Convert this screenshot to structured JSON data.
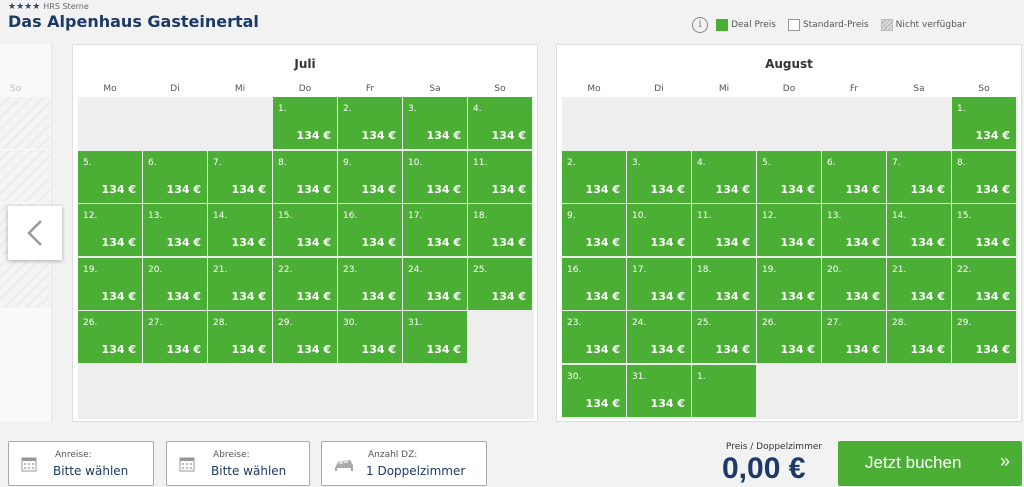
{
  "hotel": {
    "stars": "★★★★",
    "stars_label": "HRS Sterne",
    "name": "Das Alpenhaus Gasteinertal"
  },
  "legend": {
    "info_icon": "info-icon",
    "deal": "Deal Preis",
    "standard": "Standard-Preis",
    "unavailable": "Nicht verfügbar"
  },
  "colors": {
    "deal": "#4caf35",
    "brand": "#1c3a66"
  },
  "prev_month": {
    "weekday_hint": "So"
  },
  "weekdays": [
    "Mo",
    "Di",
    "Mi",
    "Do",
    "Fr",
    "Sa",
    "So"
  ],
  "months": [
    {
      "title": "Juli",
      "first_weekday_index": 3,
      "days": [
        {
          "d": "1.",
          "p": "134 €"
        },
        {
          "d": "2.",
          "p": "134 €"
        },
        {
          "d": "3.",
          "p": "134 €"
        },
        {
          "d": "4.",
          "p": "134 €"
        },
        {
          "d": "5.",
          "p": "134 €"
        },
        {
          "d": "6.",
          "p": "134 €"
        },
        {
          "d": "7.",
          "p": "134 €"
        },
        {
          "d": "8.",
          "p": "134 €"
        },
        {
          "d": "9.",
          "p": "134 €"
        },
        {
          "d": "10.",
          "p": "134 €"
        },
        {
          "d": "11.",
          "p": "134 €"
        },
        {
          "d": "12.",
          "p": "134 €"
        },
        {
          "d": "13.",
          "p": "134 €"
        },
        {
          "d": "14.",
          "p": "134 €"
        },
        {
          "d": "15.",
          "p": "134 €"
        },
        {
          "d": "16.",
          "p": "134 €"
        },
        {
          "d": "17.",
          "p": "134 €"
        },
        {
          "d": "18.",
          "p": "134 €"
        },
        {
          "d": "19.",
          "p": "134 €"
        },
        {
          "d": "20.",
          "p": "134 €"
        },
        {
          "d": "21.",
          "p": "134 €"
        },
        {
          "d": "22.",
          "p": "134 €"
        },
        {
          "d": "23.",
          "p": "134 €"
        },
        {
          "d": "24.",
          "p": "134 €"
        },
        {
          "d": "25.",
          "p": "134 €"
        },
        {
          "d": "26.",
          "p": "134 €"
        },
        {
          "d": "27.",
          "p": "134 €"
        },
        {
          "d": "28.",
          "p": "134 €"
        },
        {
          "d": "29.",
          "p": "134 €"
        },
        {
          "d": "30.",
          "p": "134 €"
        },
        {
          "d": "31.",
          "p": "134 €"
        }
      ]
    },
    {
      "title": "August",
      "first_weekday_index": 6,
      "days": [
        {
          "d": "1.",
          "p": "134 €"
        },
        {
          "d": "2.",
          "p": "134 €"
        },
        {
          "d": "3.",
          "p": "134 €"
        },
        {
          "d": "4.",
          "p": "134 €"
        },
        {
          "d": "5.",
          "p": "134 €"
        },
        {
          "d": "6.",
          "p": "134 €"
        },
        {
          "d": "7.",
          "p": "134 €"
        },
        {
          "d": "8.",
          "p": "134 €"
        },
        {
          "d": "9.",
          "p": "134 €"
        },
        {
          "d": "10.",
          "p": "134 €"
        },
        {
          "d": "11.",
          "p": "134 €"
        },
        {
          "d": "12.",
          "p": "134 €"
        },
        {
          "d": "13.",
          "p": "134 €"
        },
        {
          "d": "14.",
          "p": "134 €"
        },
        {
          "d": "15.",
          "p": "134 €"
        },
        {
          "d": "16.",
          "p": "134 €"
        },
        {
          "d": "17.",
          "p": "134 €"
        },
        {
          "d": "18.",
          "p": "134 €"
        },
        {
          "d": "19.",
          "p": "134 €"
        },
        {
          "d": "20.",
          "p": "134 €"
        },
        {
          "d": "21.",
          "p": "134 €"
        },
        {
          "d": "22.",
          "p": "134 €"
        },
        {
          "d": "23.",
          "p": "134 €"
        },
        {
          "d": "24.",
          "p": "134 €"
        },
        {
          "d": "25.",
          "p": "134 €"
        },
        {
          "d": "26.",
          "p": "134 €"
        },
        {
          "d": "27.",
          "p": "134 €"
        },
        {
          "d": "28.",
          "p": "134 €"
        },
        {
          "d": "29.",
          "p": "134 €"
        },
        {
          "d": "30.",
          "p": "134 €"
        },
        {
          "d": "31.",
          "p": "134 €"
        }
      ],
      "next_month_days": [
        {
          "d": "1.",
          "p": ""
        }
      ]
    }
  ],
  "booking": {
    "arrival": {
      "label": "Anreise:",
      "value": "Bitte wählen",
      "icon": "calendar-icon"
    },
    "departure": {
      "label": "Abreise:",
      "value": "Bitte wählen",
      "icon": "calendar-icon"
    },
    "rooms": {
      "label": "Anzahl DZ:",
      "value": "1 Doppelzimmer",
      "icon": "bed-icon"
    },
    "price_label": "Preis / Doppelzimmer",
    "price_value": "0,00 €",
    "book_button": "Jetzt buchen",
    "book_icon": "double-chevron-right-icon"
  }
}
